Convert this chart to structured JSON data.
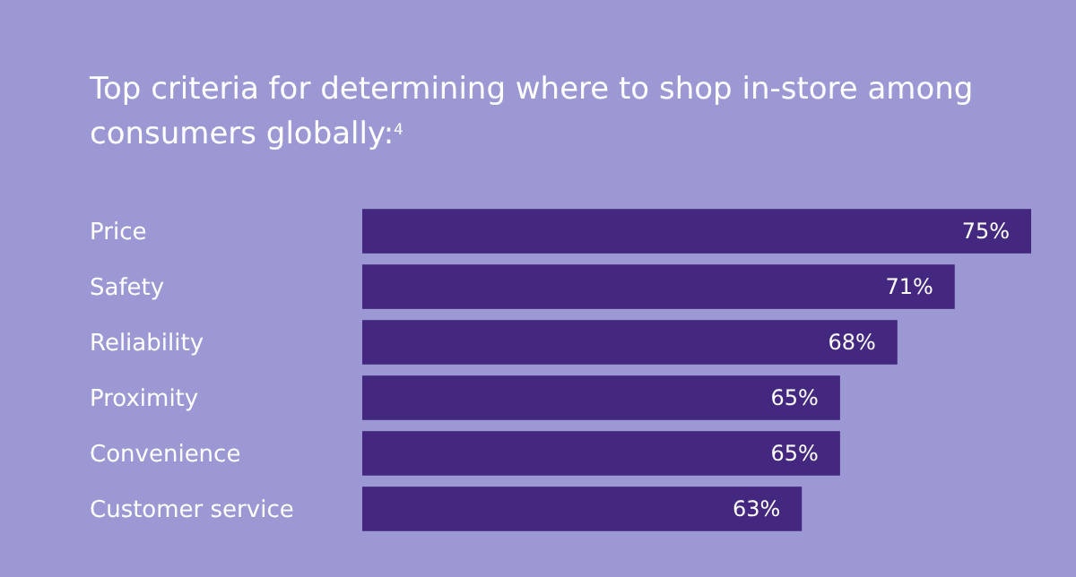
{
  "chart_data": {
    "type": "bar",
    "orientation": "horizontal",
    "title": "Top criteria for determining where to shop in-store among consumers globally:$^{4}$",
    "categories": [
      "Price",
      "Safety",
      "Reliability",
      "Proximity",
      "Convenience",
      "Customer service"
    ],
    "values": [
      75,
      71,
      68,
      65,
      65,
      63
    ],
    "color": "#44277f",
    "xlim": [
      40,
      75
    ],
    "tick_labels": "y",
    "data_labels": true,
    "value_labels": [
      "75%",
      "71%",
      "68%",
      "65%",
      "65%",
      "63%"
    ]
  }
}
